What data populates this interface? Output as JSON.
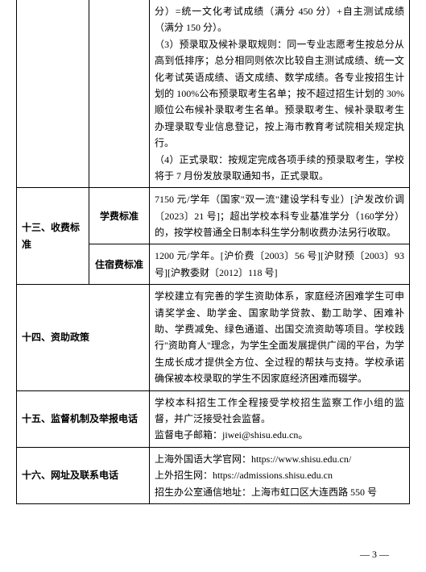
{
  "row12_continuation": "分）=统一文化考试成绩（满分 450 分）+自主测试成绩（满分 150 分）。\n（3）预录取及候补录取规则：同一专业志愿考生按总分从高到低排序；总分相同则依次比较自主测试成绩、统一文化考试英语成绩、语文成绩、数学成绩。各专业按招生计划的 100%公布预录取考生名单；按不超过招生计划的 30%顺位公布候补录取考生名单。预录取考生、候补录取考生办理录取专业信息登记，按上海市教育考试院相关规定执行。\n（4）正式录取：按规定完成各项手续的预录取考生，学校将于 7 月份发放录取通知书，正式录取。",
  "row13": {
    "label": "十三、收费标准",
    "tuition_label": "学费标准",
    "tuition_text": "7150 元/学年（国家\"双一流\"建设学科专业）[沪发改价调〔2023〕21 号]；超出学校本科专业基准学分（160学分）的，按学校普通全日制本科生学分制收费办法另行收取。",
    "dorm_label": "住宿费标准",
    "dorm_text": "1200 元/学年。[沪价费〔2003〕56 号][沪财预〔2003〕93 号][沪教委财〔2012〕118 号]"
  },
  "row14": {
    "label": "十四、资助政策",
    "text": "学校建立有完善的学生资助体系，家庭经济困难学生可申请奖学金、助学金、国家助学贷款、勤工助学、困难补助、学费减免、绿色通道、出国交流资助等项目。学校践行\"资助育人\"理念，为学生全面发展提供广阔的平台，为学生成长成才提供全方位、全过程的帮扶与支持。学校承诺确保被本校录取的学生不因家庭经济困难而辍学。"
  },
  "row15": {
    "label": "十五、监督机制及举报电话",
    "text": "学校本科招生工作全程接受学校招生监察工作小组的监督，并广泛接受社会监督。\n监督电子邮箱：jiwei@shisu.edu.cn。"
  },
  "row16": {
    "label": "十六、网址及联系电话",
    "text": "上海外国语大学官网：https://www.shisu.edu.cn/\n上外招生网：https://admissions.shisu.edu.cn\n招生办公室通信地址：上海市虹口区大连西路 550 号"
  },
  "footer": "— 3 —"
}
